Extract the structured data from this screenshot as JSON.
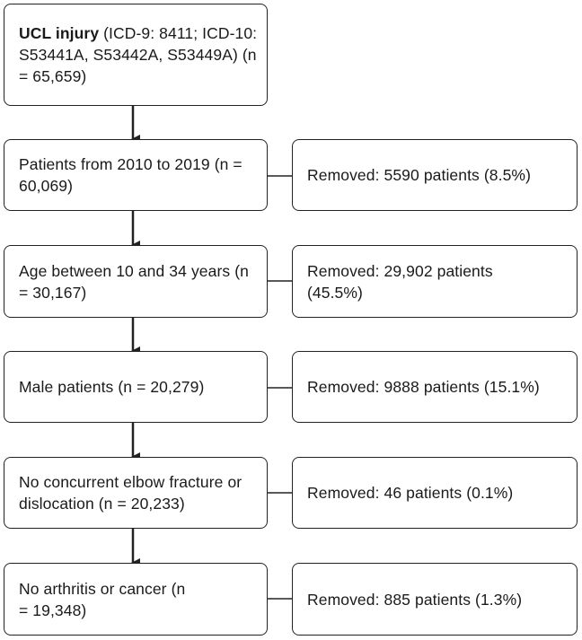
{
  "main_steps": [
    {
      "id": "step-ucl-injury",
      "bold": "UCL injury",
      "text": " (ICD-9: 8411; ICD-10: S53441A, S53442A, S53449A)  (n = 65,659)"
    },
    {
      "id": "step-years",
      "text": "Patients from 2010 to 2019 (n = 60,069)"
    },
    {
      "id": "step-age",
      "text": "Age between 10 and 34 years (n = 30,167)"
    },
    {
      "id": "step-male",
      "text": "Male patients (n = 20,279)"
    },
    {
      "id": "step-no-fracture",
      "text": "No concurrent elbow fracture or dislocation (n = 20,233)"
    },
    {
      "id": "step-no-arthritis",
      "text": "No arthritis or cancer (n = 19,348)"
    }
  ],
  "removed_steps": [
    {
      "id": "removed-years",
      "text": "Removed: 5590 patients (8.5%)"
    },
    {
      "id": "removed-age",
      "text": "Removed: 29,902 patients (45.5%)"
    },
    {
      "id": "removed-male",
      "text": "Removed: 9888 patients (15.1%)"
    },
    {
      "id": "removed-fracture",
      "text": "Removed: 46 patients (0.1%)"
    },
    {
      "id": "removed-arthritis",
      "text": "Removed: 885 patients (1.3%)"
    }
  ]
}
